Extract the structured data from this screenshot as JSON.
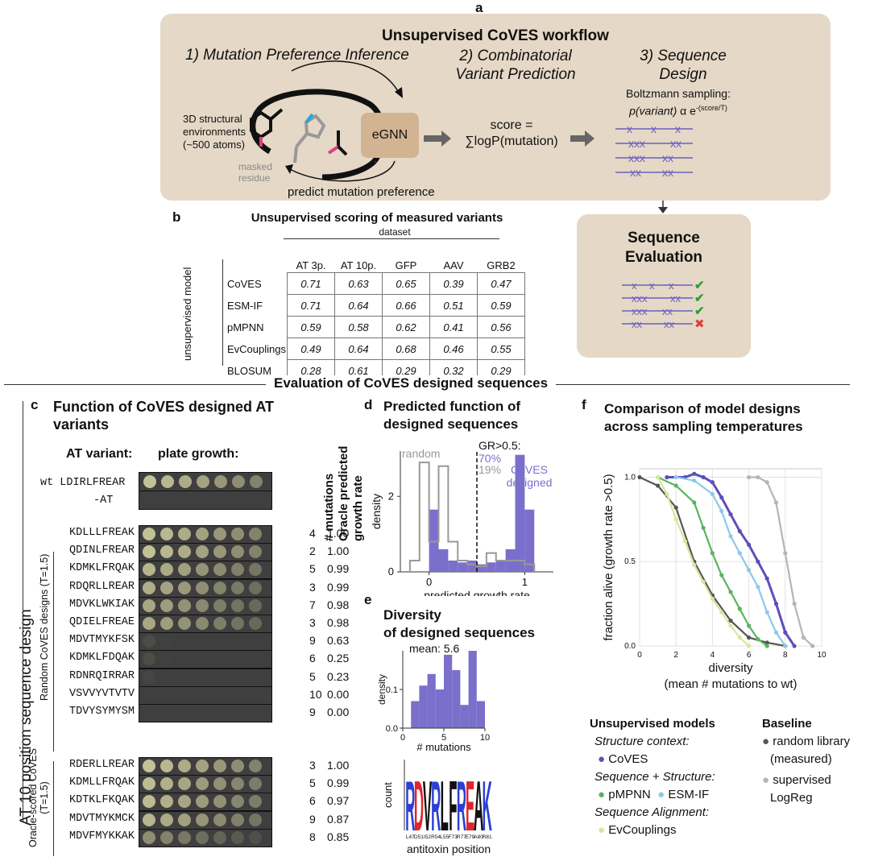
{
  "panel_letters": {
    "a": "a",
    "b": "b",
    "c": "c",
    "d": "d",
    "e": "e",
    "f": "f"
  },
  "workflow": {
    "title": "Unsupervised CoVES workflow",
    "step1": "1) Mutation Preference Inference",
    "step2_l1": "2) Combinatorial",
    "step2_l2": "Variant Prediction",
    "step3_l1": "3) Sequence",
    "step3_l2": "Design",
    "env_l1": "3D structural",
    "env_l2": "environments",
    "env_l3": "(~500 atoms)",
    "masked_l1": "masked",
    "masked_l2": "residue",
    "egnn": "eGNN",
    "score_l1": "score =",
    "score_l2": "∑logP(mutation)",
    "boltz_l1": "Boltzmann sampling:",
    "boltz_pv": "p(variant)",
    "boltz_alpha": " α e",
    "boltz_sup": "-(score/T)",
    "predict": "predict mutation preference"
  },
  "eval_box": {
    "title_l1": "Sequence",
    "title_l2": "Evaluation"
  },
  "table_b": {
    "title": "Unsupervised scoring of measured variants",
    "dataset_label": "dataset",
    "row_axis_label": "unsupervised model",
    "columns": [
      "AT 3p.",
      "AT 10p.",
      "GFP",
      "AAV",
      "GRB2"
    ],
    "rows": [
      {
        "model": "CoVES",
        "values": [
          "0.71",
          "0.63",
          "0.65",
          "0.39",
          "0.47"
        ]
      },
      {
        "model": "ESM-IF",
        "values": [
          "0.71",
          "0.64",
          "0.66",
          "0.51",
          "0.59"
        ]
      },
      {
        "model": "pMPNN",
        "values": [
          "0.59",
          "0.58",
          "0.62",
          "0.41",
          "0.56"
        ]
      },
      {
        "model": "EvCouplings",
        "values": [
          "0.49",
          "0.64",
          "0.68",
          "0.46",
          "0.55"
        ]
      },
      {
        "model": "BLOSUM",
        "values": [
          "0.28",
          "0.61",
          "0.29",
          "0.32",
          "0.29"
        ]
      }
    ]
  },
  "section_title": "Evaluation of CoVES designed sequences",
  "side_label": "AT 10 position sequence design",
  "panel_c": {
    "title_l1": "Function of CoVES designed AT",
    "title_l2": "variants",
    "col_variant": "AT variant:",
    "col_plate": "plate growth:",
    "col_mut": "# mutations",
    "col_gr_l1": "Oracle predicted",
    "col_gr_l2": "growth rate",
    "wt": "wt LDIRLFREAR",
    "neg": "-AT",
    "group1_l1": "Random CoVES designs (T=1.5)",
    "group2_l1": "Oracle-scored CoVES",
    "group2_l2": "(T=1.5)",
    "random": [
      {
        "seq": "KDLLLFREAK",
        "mut": "4",
        "gr": "1.00",
        "growth": 1.0
      },
      {
        "seq": "QDINLFREAR",
        "mut": "2",
        "gr": "1.00",
        "growth": 1.0
      },
      {
        "seq": "KDMKLFRQAK",
        "mut": "5",
        "gr": "0.99",
        "growth": 0.9
      },
      {
        "seq": "RDQRLLREAR",
        "mut": "3",
        "gr": "0.99",
        "growth": 0.85
      },
      {
        "seq": "MDVKLWKIAK",
        "mut": "7",
        "gr": "0.98",
        "growth": 0.8
      },
      {
        "seq": "QDIELFREAE",
        "mut": "3",
        "gr": "0.98",
        "growth": 0.8
      },
      {
        "seq": "MDVTMYKFSK",
        "mut": "9",
        "gr": "0.63",
        "growth": 0.1
      },
      {
        "seq": "KDMKLFDQAK",
        "mut": "6",
        "gr": "0.25",
        "growth": 0.1
      },
      {
        "seq": "RDNRQIRRAR",
        "mut": "5",
        "gr": "0.23",
        "growth": 0.05
      },
      {
        "seq": "VSVVYVTVTV",
        "mut": "10",
        "gr": "0.00",
        "growth": 0.0
      },
      {
        "seq": "TDVYSYMYSM",
        "mut": "9",
        "gr": "0.00",
        "growth": 0.0
      }
    ],
    "oracle": [
      {
        "seq": "RDERLLREAR",
        "mut": "3",
        "gr": "1.00",
        "growth": 1.0
      },
      {
        "seq": "KDMLLFRQAK",
        "mut": "5",
        "gr": "0.99",
        "growth": 0.95
      },
      {
        "seq": "KDTKLFKQAK",
        "mut": "6",
        "gr": "0.97",
        "growth": 0.95
      },
      {
        "seq": "MDVTMYKMCK",
        "mut": "9",
        "gr": "0.87",
        "growth": 0.9
      },
      {
        "seq": "MDVFMYKKAK",
        "mut": "8",
        "gr": "0.85",
        "growth": 0.6
      }
    ]
  },
  "panel_d": {
    "title_l1": "Predicted function of",
    "title_l2": "designed sequences",
    "xlabel": "predicted growth rate",
    "ylabel": "density",
    "threshold_label": "GR>0.5:",
    "pct_coves": "70%",
    "pct_random": "19%",
    "random_label": "random",
    "coves_label_l1": "CoVES",
    "coves_label_l2": "designed",
    "xticks": [
      "0",
      "1"
    ],
    "yticks": [
      "0",
      "2"
    ]
  },
  "panel_e": {
    "title_l1": "Diversity",
    "title_l2": "of",
    "title_l3": "designed sequences",
    "mean_label": "mean: 5.6",
    "xlabel": "# mutations",
    "ylabel": "density",
    "xticks": [
      "0",
      "5",
      "10"
    ],
    "yticks": [
      "0.0",
      "0.1"
    ],
    "logo_ylabel": "count",
    "logo_xlabel": "antitoxin position",
    "positions": [
      "L47",
      "D51",
      "I52",
      "R54",
      "L55",
      "F73",
      "R77",
      "E79",
      "A80",
      "R81"
    ],
    "logo_letters": [
      "R",
      "D",
      "V",
      "R",
      "L",
      "F",
      "R",
      "E",
      "A",
      "K"
    ]
  },
  "panel_f": {
    "title_l1": "Comparison of model designs",
    "title_l2": "across sampling temperatures",
    "xlabel_l1": "diversity",
    "xlabel_l2": "(mean # mutations to wt)",
    "ylabel": "fraction alive (growth rate >0.5)",
    "xticks": [
      "0",
      "2",
      "4",
      "6",
      "8",
      "10"
    ],
    "yticks": [
      "0.0",
      "0.5",
      "1.0"
    ],
    "legend": {
      "unsup_title": "Unsupervised models",
      "struct_ctx": "Structure context:",
      "coves": "CoVES",
      "seq_struct": "Sequence + Structure:",
      "pmpnn": "pMPNN",
      "esmif": "ESM-IF",
      "seq_align": "Sequence Alignment:",
      "evc": "EvCouplings",
      "base_title": "Baseline",
      "random_l1": "random library",
      "random_l2": "(measured)",
      "sup_l1": "supervised",
      "sup_l2": "LogReg"
    },
    "colors": {
      "coves": "#5d4fb8",
      "pmpnn": "#5ab45f",
      "esmif": "#8fc8e8",
      "evc": "#d6e89a",
      "random": "#555555",
      "sup": "#b5b5b5"
    }
  },
  "chart_data": [
    {
      "type": "bar",
      "title": "Predicted function of designed sequences",
      "xlabel": "predicted growth rate",
      "ylabel": "density",
      "xlim": [
        -0.3,
        1.3
      ],
      "ylim": [
        0,
        3.2
      ],
      "bin_edges": [
        -0.2,
        -0.1,
        0.0,
        0.1,
        0.2,
        0.3,
        0.4,
        0.5,
        0.6,
        0.7,
        0.8,
        0.9,
        1.0,
        1.1
      ],
      "series": [
        {
          "name": "random",
          "values": [
            0.3,
            2.9,
            0.8,
            2.8,
            0.8,
            0.3,
            0.2,
            0.15,
            0.5,
            0.3,
            0.3,
            0.3,
            0.2
          ]
        },
        {
          "name": "CoVES designed",
          "values": [
            0.0,
            0.0,
            1.65,
            0.6,
            0.3,
            0.25,
            0.3,
            0.2,
            0.25,
            0.3,
            0.6,
            3.1,
            1.65
          ]
        }
      ],
      "threshold": 0.5
    },
    {
      "type": "bar",
      "title": "Diversity of designed sequences",
      "xlabel": "# mutations",
      "ylabel": "density",
      "xlim": [
        0,
        10
      ],
      "ylim": [
        0,
        0.2
      ],
      "bin_edges": [
        1,
        2,
        3,
        4,
        5,
        6,
        7,
        8,
        9,
        10
      ],
      "values": [
        0.07,
        0.11,
        0.14,
        0.1,
        0.19,
        0.15,
        0.06,
        0.2,
        0.07
      ]
    },
    {
      "type": "line",
      "title": "Comparison of model designs across sampling temperatures",
      "xlabel": "diversity",
      "ylabel": "fraction alive (growth rate >0.5)",
      "xlim": [
        0,
        10
      ],
      "ylim": [
        0,
        1.05
      ],
      "series": [
        {
          "name": "random library",
          "x": [
            0,
            1,
            2,
            3,
            4,
            5,
            6,
            7,
            8
          ],
          "y": [
            1.0,
            0.95,
            0.82,
            0.5,
            0.3,
            0.15,
            0.05,
            0.02,
            0.0
          ]
        },
        {
          "name": "supervised LogReg",
          "x": [
            6,
            6.5,
            7,
            7.5,
            8,
            8.5,
            9,
            9.5
          ],
          "y": [
            1.0,
            1.0,
            0.97,
            0.85,
            0.55,
            0.25,
            0.05,
            0.0
          ]
        },
        {
          "name": "CoVES",
          "x": [
            1.5,
            2.5,
            3,
            3.5,
            4,
            4.5,
            5,
            5.5,
            6,
            6.5,
            7,
            7.5,
            8,
            8.5
          ],
          "y": [
            1.0,
            1.0,
            1.02,
            1.0,
            0.97,
            0.88,
            0.78,
            0.68,
            0.6,
            0.5,
            0.4,
            0.25,
            0.08,
            0.0
          ]
        },
        {
          "name": "ESM-IF",
          "x": [
            2,
            3,
            4,
            4.5,
            5,
            5.5,
            6,
            6.5,
            7,
            7.5,
            8
          ],
          "y": [
            1.0,
            0.98,
            0.9,
            0.8,
            0.65,
            0.55,
            0.45,
            0.35,
            0.2,
            0.08,
            0.0
          ]
        },
        {
          "name": "pMPNN",
          "x": [
            1,
            2,
            3,
            3.5,
            4,
            4.5,
            5,
            5.5,
            6,
            6.5,
            7
          ],
          "y": [
            1.0,
            0.95,
            0.85,
            0.7,
            0.55,
            0.42,
            0.32,
            0.22,
            0.12,
            0.04,
            0.0
          ]
        },
        {
          "name": "EvCouplings",
          "x": [
            1,
            1.5,
            2,
            2.5,
            3,
            3.5,
            4,
            4.5,
            5,
            5.5,
            6
          ],
          "y": [
            1.0,
            0.9,
            0.75,
            0.62,
            0.48,
            0.38,
            0.28,
            0.2,
            0.12,
            0.05,
            0.0
          ]
        }
      ],
      "grid": true
    }
  ]
}
